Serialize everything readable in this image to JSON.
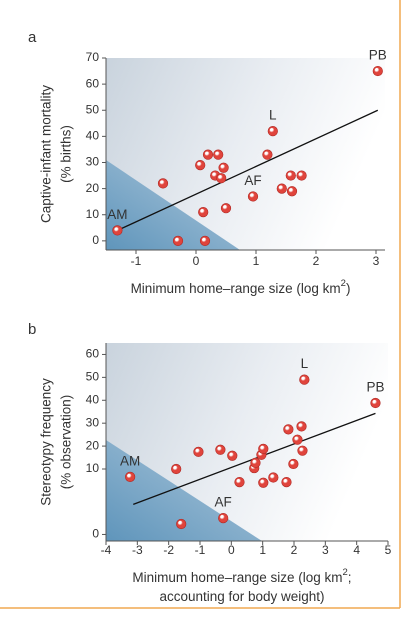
{
  "chart_data": [
    {
      "type": "scatter",
      "panel_label": "a",
      "y_label": [
        "Captive-infant mortality",
        "(% births)"
      ],
      "x_label": [
        [
          "Minimum home–range size (log km",
          "2",
          ")"
        ]
      ],
      "x": [
        -1.31,
        -0.55,
        -0.3,
        0.07,
        0.12,
        0.15,
        0.2,
        0.32,
        0.37,
        0.42,
        0.46,
        0.5,
        0.95,
        1.19,
        1.28,
        1.43,
        1.58,
        1.6,
        1.76,
        3.03
      ],
      "y": [
        4,
        22,
        0,
        29,
        11,
        0,
        33,
        25,
        33,
        24,
        28,
        12.5,
        17,
        33,
        42,
        20,
        25,
        19,
        25,
        65
      ],
      "point_labels": [
        "AM",
        null,
        null,
        null,
        null,
        null,
        null,
        null,
        null,
        null,
        null,
        null,
        "AF",
        null,
        "L",
        null,
        null,
        null,
        null,
        "PB"
      ],
      "color": "#e0443c",
      "trend_x": [
        -1.31,
        3.03
      ],
      "trend_y": [
        4,
        50
      ],
      "xlim": [
        -1.5,
        3.15
      ],
      "ylim": [
        -3.5,
        70
      ],
      "xticks": [
        -1,
        0,
        1,
        2,
        3
      ],
      "yticks": [
        0,
        10,
        20,
        30,
        40,
        50,
        60,
        70
      ]
    },
    {
      "type": "scatter",
      "panel_label": "b",
      "y_label": [
        "Stereotypy frequency",
        "(% observation)"
      ],
      "x_label": [
        [
          "Minimum home–range size (log km",
          "2",
          ";"
        ],
        [
          "accounting for body weight)"
        ]
      ],
      "x": [
        -3.23,
        -1.76,
        -1.6,
        -1.05,
        -0.35,
        0.03,
        -0.26,
        0.26,
        0.73,
        0.77,
        0.96,
        1.02,
        1.02,
        1.34,
        1.76,
        1.82,
        1.98,
        2.11,
        2.24,
        2.27,
        2.33,
        4.6
      ],
      "y": [
        8.8,
        10,
        1.6,
        17.5,
        18.4,
        15.8,
        2.5,
        8,
        10.4,
        12.7,
        16.2,
        18.8,
        7.9,
        8.7,
        8,
        27.3,
        12.2,
        22.8,
        28.6,
        18,
        49,
        38.8
      ],
      "point_labels": [
        "AM",
        null,
        null,
        null,
        null,
        null,
        "AF",
        null,
        null,
        null,
        null,
        null,
        null,
        null,
        null,
        null,
        null,
        null,
        null,
        null,
        "L",
        "PB"
      ],
      "color": "#e0443c",
      "trend_x": [
        -3.13,
        4.6
      ],
      "trend_y": [
        4.6,
        34.3
      ],
      "xlim": [
        -4,
        5
      ],
      "ylim": [
        -1,
        65
      ],
      "ybreak": 10,
      "xticks": [
        -4,
        -3,
        -2,
        -1,
        0,
        1,
        2,
        3,
        4,
        5
      ],
      "yticks": [
        0,
        10,
        20,
        30,
        40,
        50,
        60
      ]
    }
  ]
}
